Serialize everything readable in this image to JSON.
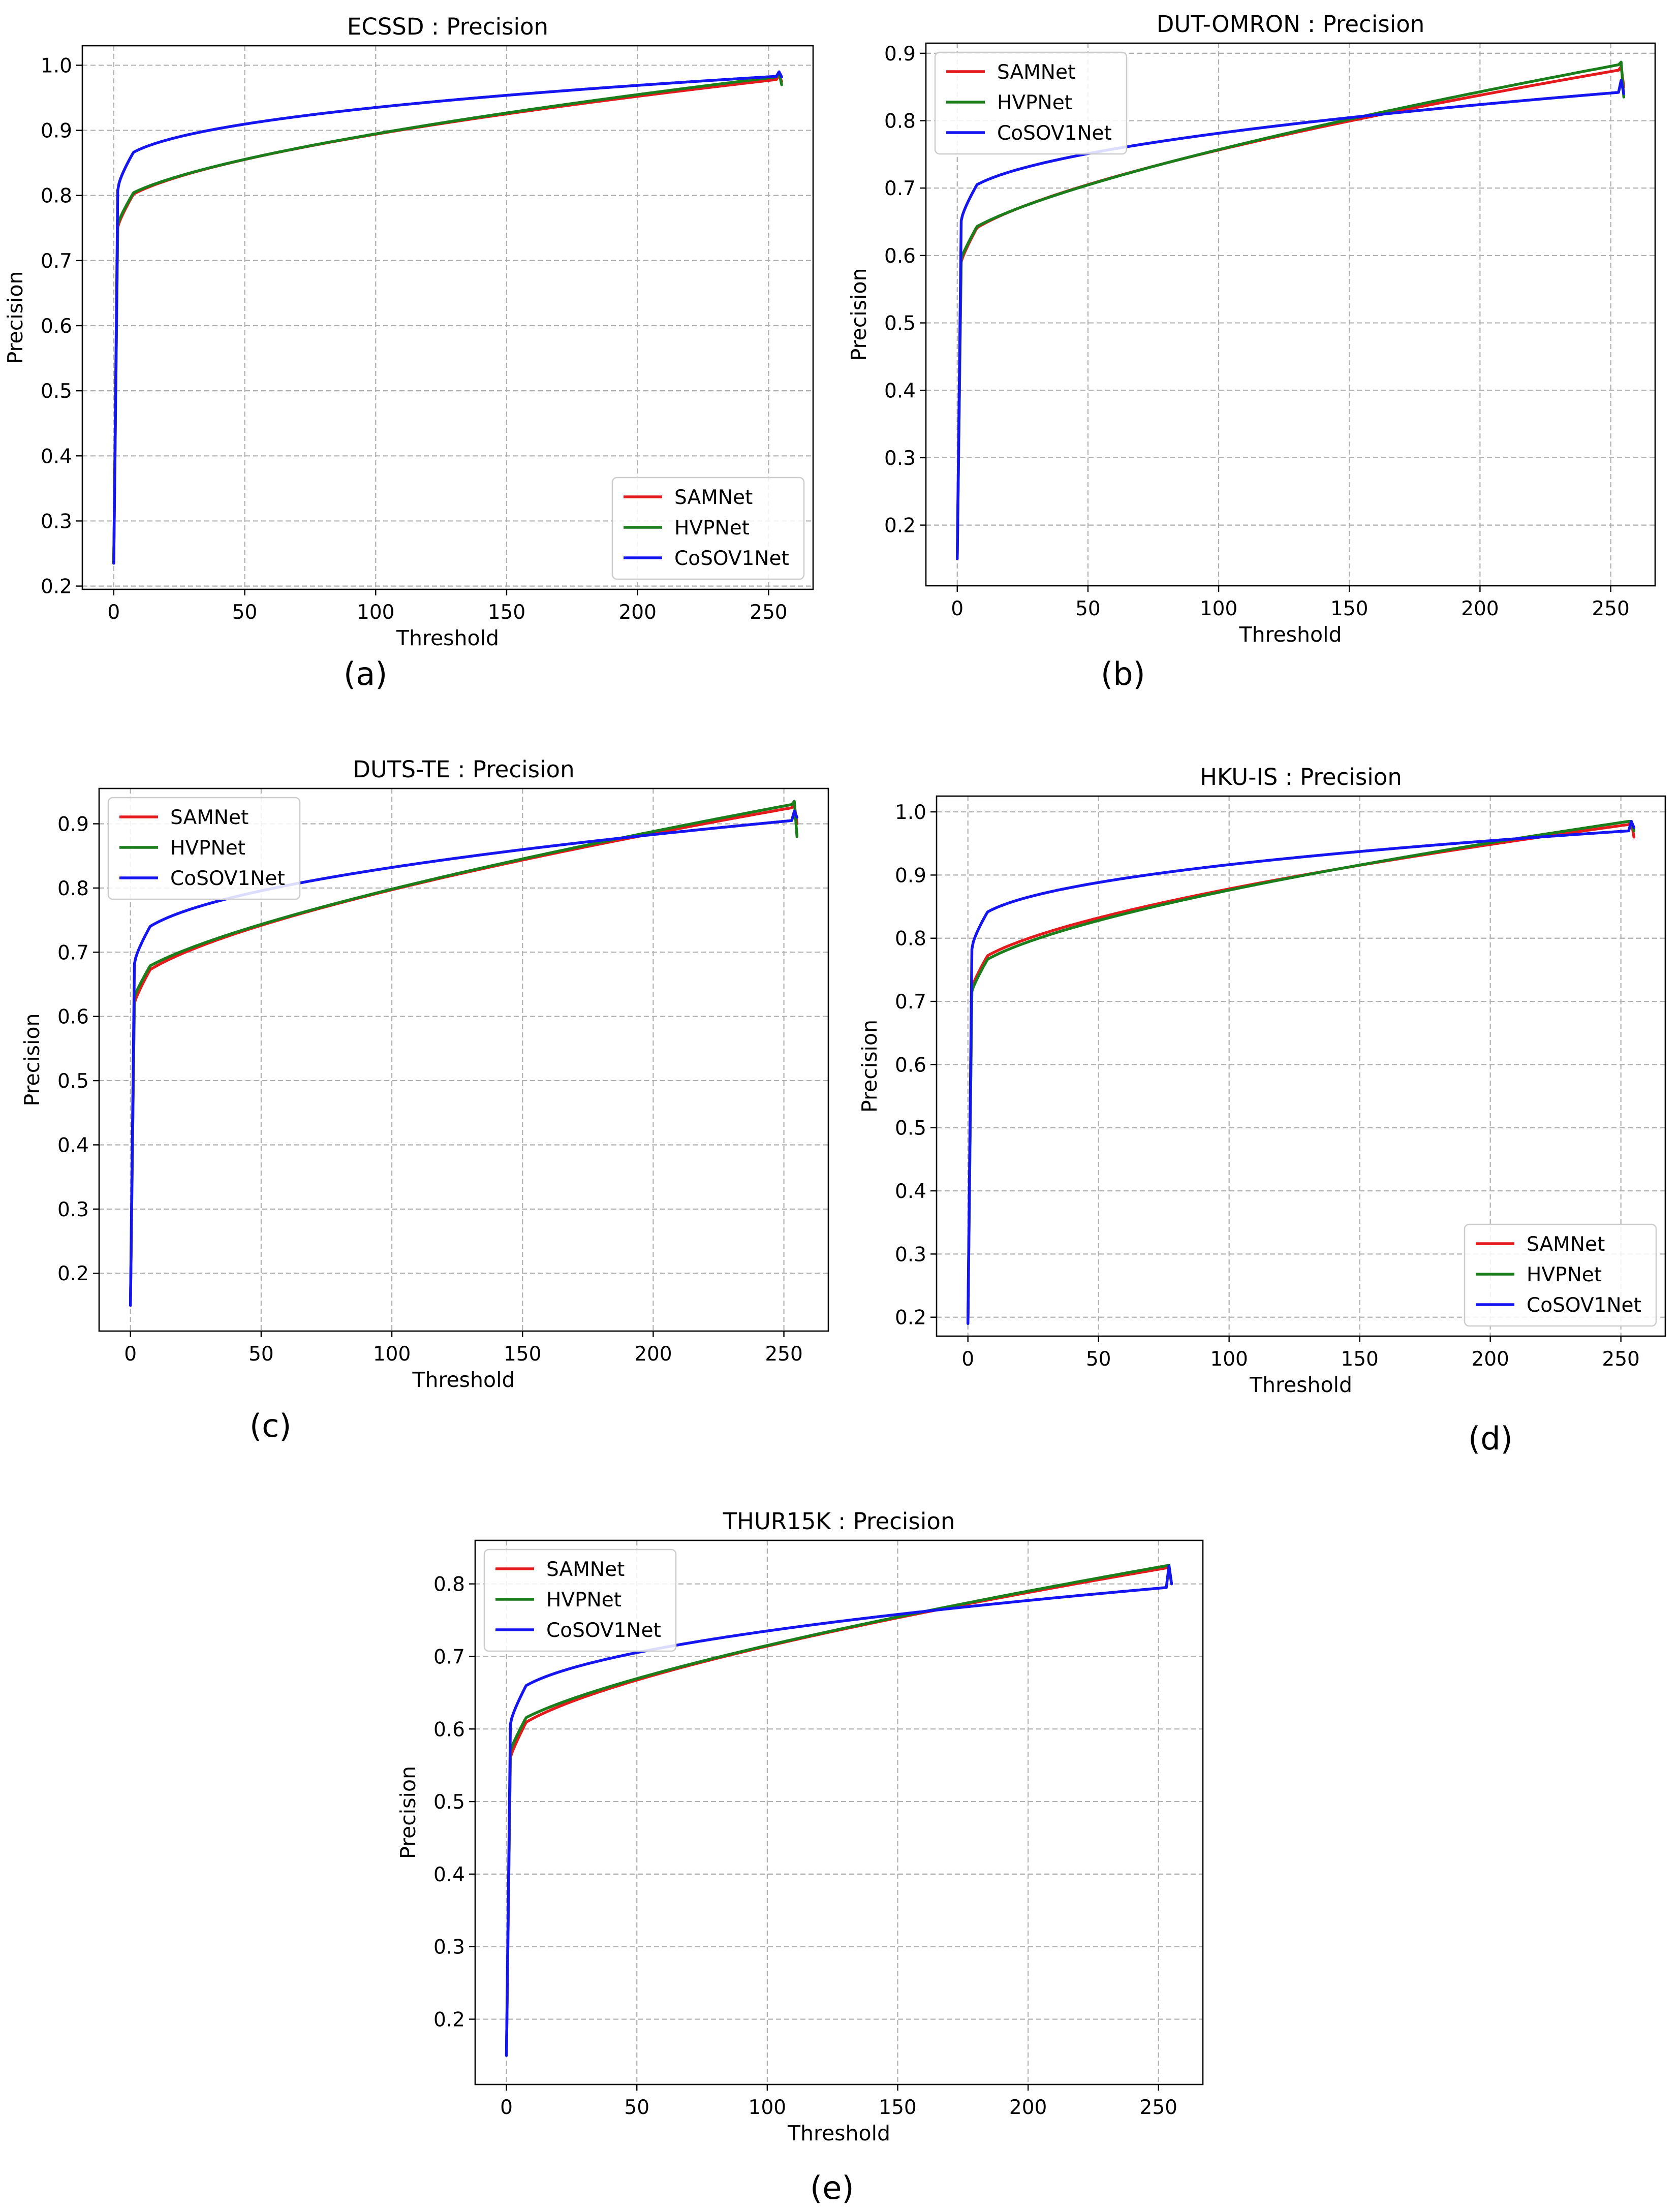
{
  "figure": {
    "colors": {
      "SAMNet": "#e41a1c",
      "HVPNet": "#1a7f1a",
      "CoSOV1Net": "#1515f0",
      "grid": "#b0b0b0",
      "frame": "#000000"
    },
    "legend_order": [
      "SAMNet",
      "HVPNet",
      "CoSOV1Net"
    ]
  },
  "chart_data": [
    {
      "id": "a",
      "caption": "(a)",
      "type": "line",
      "title": "ECSSD : Precision",
      "xlabel": "Threshold",
      "ylabel": "Precision",
      "xlim": [
        -12,
        267
      ],
      "ylim": [
        0.195,
        1.03
      ],
      "xticks": [
        0,
        50,
        100,
        150,
        200,
        250
      ],
      "yticks": [
        0.2,
        0.3,
        0.4,
        0.5,
        0.6,
        0.7,
        0.8,
        0.9,
        1.0
      ],
      "ytick_decimals": 1,
      "grid": true,
      "legend_position": "lower-right",
      "series": [
        {
          "name": "SAMNet",
          "start": 0.235,
          "a": 0.78,
          "b": 0.978,
          "c": 1.7,
          "end_points": [
            [
              254,
              0.985
            ],
            [
              255,
              0.975
            ]
          ]
        },
        {
          "name": "HVPNet",
          "start": 0.235,
          "a": 0.785,
          "b": 0.982,
          "c": 1.6,
          "end_points": [
            [
              254,
              0.988
            ],
            [
              255,
              0.97
            ]
          ]
        },
        {
          "name": "CoSOV1Net",
          "start": 0.235,
          "a": 0.835,
          "b": 0.983,
          "c": 2.4,
          "end_points": [
            [
              254,
              0.99
            ],
            [
              255,
              0.982
            ]
          ]
        }
      ]
    },
    {
      "id": "b",
      "caption": "(b)",
      "type": "line",
      "title": "DUT-OMRON : Precision",
      "xlabel": "Threshold",
      "ylabel": "Precision",
      "xlim": [
        -12,
        267
      ],
      "ylim": [
        0.11,
        0.915
      ],
      "xticks": [
        0,
        50,
        100,
        150,
        200,
        250
      ],
      "yticks": [
        0.2,
        0.3,
        0.4,
        0.5,
        0.6,
        0.7,
        0.8,
        0.9
      ],
      "ytick_decimals": 1,
      "grid": true,
      "legend_position": "upper-left",
      "series": [
        {
          "name": "SAMNet",
          "start": 0.15,
          "a": 0.62,
          "b": 0.875,
          "c": 1.5,
          "end_points": [
            [
              254,
              0.88
            ],
            [
              255,
              0.85
            ]
          ]
        },
        {
          "name": "HVPNet",
          "start": 0.15,
          "a": 0.625,
          "b": 0.883,
          "c": 1.4,
          "end_points": [
            [
              254,
              0.887
            ],
            [
              255,
              0.835
            ]
          ]
        },
        {
          "name": "CoSOV1Net",
          "start": 0.15,
          "a": 0.68,
          "b": 0.842,
          "c": 2.0,
          "end_points": [
            [
              254,
              0.86
            ],
            [
              255,
              0.84
            ]
          ]
        }
      ]
    },
    {
      "id": "c",
      "caption": "(c)",
      "type": "line",
      "title": "DUTS-TE : Precision",
      "xlabel": "Threshold",
      "ylabel": "Precision",
      "xlim": [
        -12,
        267
      ],
      "ylim": [
        0.11,
        0.955
      ],
      "xticks": [
        0,
        50,
        100,
        150,
        200,
        250
      ],
      "yticks": [
        0.2,
        0.3,
        0.4,
        0.5,
        0.6,
        0.7,
        0.8,
        0.9
      ],
      "ytick_decimals": 1,
      "grid": true,
      "legend_position": "upper-left",
      "series": [
        {
          "name": "SAMNet",
          "start": 0.15,
          "a": 0.65,
          "b": 0.925,
          "c": 1.5,
          "end_points": [
            [
              254,
              0.93
            ],
            [
              255,
              0.9
            ]
          ]
        },
        {
          "name": "HVPNet",
          "start": 0.15,
          "a": 0.66,
          "b": 0.93,
          "c": 1.4,
          "end_points": [
            [
              254,
              0.935
            ],
            [
              255,
              0.88
            ]
          ]
        },
        {
          "name": "CoSOV1Net",
          "start": 0.15,
          "a": 0.71,
          "b": 0.905,
          "c": 2.0,
          "end_points": [
            [
              254,
              0.92
            ],
            [
              255,
              0.91
            ]
          ]
        }
      ]
    },
    {
      "id": "d",
      "caption": "(d)",
      "type": "line",
      "title": "HKU-IS : Precision",
      "xlabel": "Threshold",
      "ylabel": "Precision",
      "xlim": [
        -12,
        267
      ],
      "ylim": [
        0.17,
        1.025
      ],
      "xticks": [
        0,
        50,
        100,
        150,
        200,
        250
      ],
      "yticks": [
        0.2,
        0.3,
        0.4,
        0.5,
        0.6,
        0.7,
        0.8,
        0.9,
        1.0
      ],
      "ytick_decimals": 1,
      "grid": true,
      "legend_position": "lower-right",
      "series": [
        {
          "name": "SAMNet",
          "start": 0.19,
          "a": 0.75,
          "b": 0.98,
          "c": 1.6,
          "end_points": [
            [
              254,
              0.985
            ],
            [
              255,
              0.96
            ]
          ]
        },
        {
          "name": "HVPNet",
          "start": 0.19,
          "a": 0.745,
          "b": 0.985,
          "c": 1.55,
          "end_points": [
            [
              254,
              0.985
            ],
            [
              255,
              0.97
            ]
          ]
        },
        {
          "name": "CoSOV1Net",
          "start": 0.19,
          "a": 0.81,
          "b": 0.97,
          "c": 2.3,
          "end_points": [
            [
              254,
              0.985
            ],
            [
              255,
              0.975
            ]
          ]
        }
      ]
    },
    {
      "id": "e",
      "caption": "(e)",
      "type": "line",
      "title": "THUR15K : Precision",
      "xlabel": "Threshold",
      "ylabel": "Precision",
      "xlim": [
        -12,
        267
      ],
      "ylim": [
        0.11,
        0.86
      ],
      "xticks": [
        0,
        50,
        100,
        150,
        200,
        250
      ],
      "yticks": [
        0.2,
        0.3,
        0.4,
        0.5,
        0.6,
        0.7,
        0.8
      ],
      "ytick_decimals": 1,
      "grid": true,
      "legend_position": "upper-left",
      "series": [
        {
          "name": "SAMNet",
          "start": 0.15,
          "a": 0.59,
          "b": 0.822,
          "c": 1.5,
          "end_points": [
            [
              254,
              0.825
            ],
            [
              255,
              0.8
            ]
          ]
        },
        {
          "name": "HVPNet",
          "start": 0.15,
          "a": 0.6,
          "b": 0.825,
          "c": 1.4,
          "end_points": [
            [
              254,
              0.826
            ],
            [
              255,
              0.8
            ]
          ]
        },
        {
          "name": "CoSOV1Net",
          "start": 0.15,
          "a": 0.635,
          "b": 0.795,
          "c": 2.0,
          "end_points": [
            [
              254,
              0.825
            ],
            [
              255,
              0.8
            ]
          ]
        }
      ]
    }
  ]
}
